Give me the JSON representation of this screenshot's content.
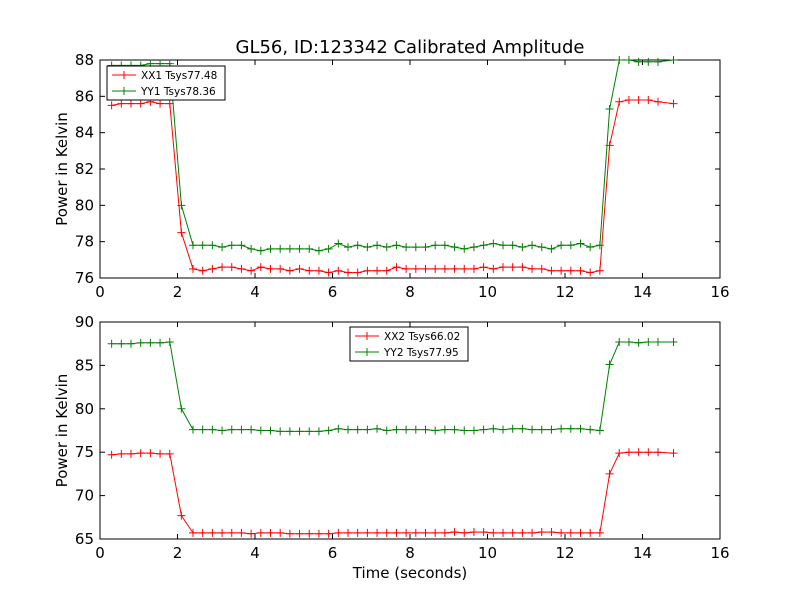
{
  "title": "GL56, ID:123342 Calibrated Amplitude",
  "chart_data": [
    {
      "type": "line",
      "title": "GL56, ID:123342 Calibrated Amplitude",
      "xlabel": "",
      "ylabel": "Power in Kelvin",
      "xlim": [
        0,
        16
      ],
      "ylim": [
        76,
        88
      ],
      "xticks": [
        0,
        2,
        4,
        6,
        8,
        10,
        12,
        14,
        16
      ],
      "yticks": [
        76,
        78,
        80,
        82,
        84,
        86,
        88
      ],
      "grid": false,
      "legend_position": "top-left",
      "x": [
        0.3,
        0.55,
        0.8,
        1.05,
        1.3,
        1.55,
        1.8,
        2.1,
        2.4,
        2.65,
        2.9,
        3.15,
        3.4,
        3.65,
        3.9,
        4.15,
        4.4,
        4.65,
        4.9,
        5.15,
        5.4,
        5.65,
        5.9,
        6.15,
        6.4,
        6.65,
        6.9,
        7.15,
        7.4,
        7.65,
        7.9,
        8.15,
        8.4,
        8.65,
        8.9,
        9.15,
        9.4,
        9.65,
        9.9,
        10.15,
        10.4,
        10.65,
        10.9,
        11.15,
        11.4,
        11.65,
        11.9,
        12.15,
        12.4,
        12.65,
        12.9,
        13.15,
        13.4,
        13.65,
        13.9,
        14.15,
        14.4,
        14.8
      ],
      "series": [
        {
          "name": "XX1 Tsys77.48",
          "color": "#ff0000",
          "values": [
            85.5,
            85.6,
            85.6,
            85.6,
            85.7,
            85.6,
            85.6,
            78.5,
            76.5,
            76.4,
            76.5,
            76.6,
            76.6,
            76.5,
            76.4,
            76.6,
            76.5,
            76.5,
            76.4,
            76.5,
            76.4,
            76.4,
            76.3,
            76.4,
            76.3,
            76.3,
            76.4,
            76.4,
            76.4,
            76.6,
            76.5,
            76.5,
            76.5,
            76.5,
            76.5,
            76.5,
            76.5,
            76.5,
            76.6,
            76.5,
            76.6,
            76.6,
            76.6,
            76.5,
            76.5,
            76.4,
            76.4,
            76.4,
            76.4,
            76.3,
            76.4,
            83.3,
            85.7,
            85.8,
            85.8,
            85.8,
            85.7,
            85.6
          ]
        },
        {
          "name": "YY1 Tsys78.36",
          "color": "#008000",
          "values": [
            87.7,
            87.7,
            87.7,
            87.7,
            87.8,
            87.8,
            87.8,
            80.0,
            77.8,
            77.8,
            77.8,
            77.7,
            77.8,
            77.8,
            77.6,
            77.5,
            77.6,
            77.6,
            77.6,
            77.6,
            77.6,
            77.5,
            77.6,
            77.9,
            77.7,
            77.8,
            77.7,
            77.8,
            77.7,
            77.8,
            77.7,
            77.7,
            77.7,
            77.8,
            77.8,
            77.7,
            77.6,
            77.7,
            77.8,
            77.9,
            77.8,
            77.8,
            77.7,
            77.8,
            77.7,
            77.6,
            77.8,
            77.8,
            77.9,
            77.7,
            77.8,
            85.3,
            88.0,
            88.0,
            87.9,
            87.9,
            87.9,
            88.0
          ]
        }
      ]
    },
    {
      "type": "line",
      "title": "",
      "xlabel": "Time (seconds)",
      "ylabel": "Power in Kelvin",
      "xlim": [
        0,
        16
      ],
      "ylim": [
        65,
        90
      ],
      "xticks": [
        0,
        2,
        4,
        6,
        8,
        10,
        12,
        14,
        16
      ],
      "yticks": [
        65,
        70,
        75,
        80,
        85,
        90
      ],
      "grid": false,
      "legend_position": "top-center",
      "x": [
        0.3,
        0.55,
        0.8,
        1.05,
        1.3,
        1.55,
        1.8,
        2.1,
        2.4,
        2.65,
        2.9,
        3.15,
        3.4,
        3.65,
        3.9,
        4.15,
        4.4,
        4.65,
        4.9,
        5.15,
        5.4,
        5.65,
        5.9,
        6.15,
        6.4,
        6.65,
        6.9,
        7.15,
        7.4,
        7.65,
        7.9,
        8.15,
        8.4,
        8.65,
        8.9,
        9.15,
        9.4,
        9.65,
        9.9,
        10.15,
        10.4,
        10.65,
        10.9,
        11.15,
        11.4,
        11.65,
        11.9,
        12.15,
        12.4,
        12.65,
        12.9,
        13.15,
        13.4,
        13.65,
        13.9,
        14.15,
        14.4,
        14.8
      ],
      "series": [
        {
          "name": "XX2 Tsys66.02",
          "color": "#ff0000",
          "values": [
            74.7,
            74.8,
            74.8,
            74.9,
            74.9,
            74.8,
            74.8,
            67.7,
            65.7,
            65.7,
            65.7,
            65.7,
            65.7,
            65.7,
            65.6,
            65.7,
            65.7,
            65.7,
            65.6,
            65.6,
            65.6,
            65.6,
            65.6,
            65.7,
            65.7,
            65.7,
            65.7,
            65.7,
            65.7,
            65.7,
            65.7,
            65.7,
            65.7,
            65.7,
            65.7,
            65.8,
            65.7,
            65.8,
            65.8,
            65.7,
            65.7,
            65.7,
            65.7,
            65.7,
            65.8,
            65.8,
            65.7,
            65.7,
            65.7,
            65.7,
            65.7,
            72.5,
            74.9,
            75.0,
            75.0,
            75.0,
            75.0,
            74.9
          ]
        },
        {
          "name": "YY2 Tsys77.95",
          "color": "#008000",
          "values": [
            87.5,
            87.5,
            87.5,
            87.6,
            87.6,
            87.6,
            87.7,
            80.0,
            77.6,
            77.6,
            77.6,
            77.5,
            77.6,
            77.6,
            77.6,
            77.5,
            77.5,
            77.4,
            77.4,
            77.4,
            77.4,
            77.4,
            77.5,
            77.7,
            77.6,
            77.6,
            77.6,
            77.7,
            77.5,
            77.6,
            77.6,
            77.6,
            77.6,
            77.5,
            77.6,
            77.6,
            77.5,
            77.5,
            77.6,
            77.7,
            77.6,
            77.7,
            77.7,
            77.6,
            77.6,
            77.6,
            77.7,
            77.7,
            77.7,
            77.6,
            77.5,
            85.1,
            87.7,
            87.7,
            87.6,
            87.7,
            87.7,
            87.7
          ]
        }
      ]
    }
  ]
}
